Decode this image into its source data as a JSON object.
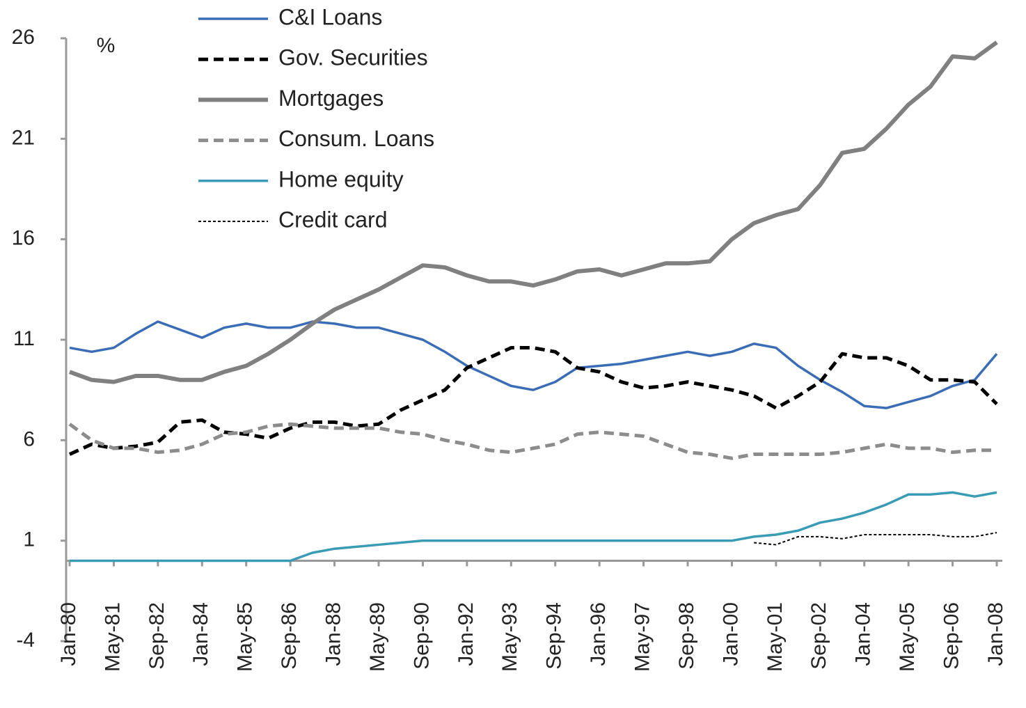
{
  "chart_data": {
    "type": "line",
    "y_label": "%",
    "categories": [
      "Jan-80",
      null,
      "May-81",
      null,
      "Sep-82",
      null,
      "Jan-84",
      null,
      "May-85",
      null,
      "Sep-86",
      null,
      "Jan-88",
      null,
      "May-89",
      null,
      "Sep-90",
      null,
      "Jan-92",
      null,
      "May-93",
      null,
      "Sep-94",
      null,
      "Jan-96",
      null,
      "May-97",
      null,
      "Sep-98",
      null,
      "Jan-00",
      null,
      "May-01",
      null,
      "Sep-02",
      null,
      "Jan-04",
      null,
      "May-05",
      null,
      "Sep-06",
      null,
      "Jan-08"
    ],
    "ylim": [
      -4,
      26
    ],
    "yticks": [
      -4,
      1,
      6,
      11,
      16,
      21,
      26
    ],
    "series": [
      {
        "name": "C&I Loans",
        "color": "#3a6db5",
        "line_style": "solid",
        "values": [
          10.6,
          10.4,
          10.6,
          11.3,
          11.9,
          11.5,
          11.1,
          11.6,
          11.8,
          11.6,
          11.6,
          11.9,
          11.8,
          11.6,
          11.6,
          11.3,
          11.0,
          10.4,
          9.7,
          9.2,
          8.7,
          8.5,
          8.9,
          9.6,
          9.7,
          9.8,
          10.0,
          10.2,
          10.4,
          10.2,
          10.4,
          10.8,
          10.6,
          9.7,
          9.0,
          8.4,
          7.7,
          7.6,
          7.9,
          8.2,
          8.7,
          9.0,
          10.3
        ]
      },
      {
        "name": "Gov. Securities",
        "color": "#000000",
        "line_style": "dashed",
        "values": [
          5.3,
          5.8,
          5.6,
          5.7,
          5.9,
          6.9,
          7.0,
          6.4,
          6.3,
          6.1,
          6.6,
          6.9,
          6.9,
          6.7,
          6.8,
          7.5,
          8.0,
          8.5,
          9.6,
          10.1,
          10.6,
          10.6,
          10.4,
          9.6,
          9.4,
          8.9,
          8.6,
          8.7,
          8.9,
          8.7,
          8.5,
          8.2,
          7.6,
          8.2,
          8.9,
          10.3,
          10.1,
          10.1,
          9.7,
          9.0,
          9.0,
          8.9,
          7.8
        ]
      },
      {
        "name": "Mortgages",
        "color": "#808080",
        "line_style": "solid",
        "values": [
          9.4,
          9.0,
          8.9,
          9.2,
          9.2,
          9.0,
          9.0,
          9.4,
          9.7,
          10.3,
          11.0,
          11.8,
          12.5,
          13.0,
          13.5,
          14.1,
          14.7,
          14.6,
          14.2,
          13.9,
          13.9,
          13.7,
          14.0,
          14.4,
          14.5,
          14.2,
          14.5,
          14.8,
          14.8,
          14.9,
          16.0,
          16.8,
          17.2,
          17.5,
          18.7,
          20.3,
          20.5,
          21.5,
          22.7,
          23.6,
          25.1,
          25.0,
          25.8
        ]
      },
      {
        "name": "Consum. Loans",
        "color": "#8c8c8c",
        "line_style": "dashed",
        "values": [
          6.8,
          6.0,
          5.6,
          5.6,
          5.4,
          5.5,
          5.8,
          6.3,
          6.4,
          6.7,
          6.8,
          6.7,
          6.6,
          6.6,
          6.6,
          6.4,
          6.3,
          6.0,
          5.8,
          5.5,
          5.4,
          5.6,
          5.8,
          6.3,
          6.4,
          6.3,
          6.2,
          5.8,
          5.4,
          5.3,
          5.1,
          5.3,
          5.3,
          5.3,
          5.3,
          5.4,
          5.6,
          5.8,
          5.6,
          5.6,
          5.4,
          5.5,
          5.5
        ]
      },
      {
        "name": "Home equity",
        "color": "#3a9bb5",
        "line_style": "solid",
        "values": [
          0,
          0,
          0,
          0,
          0,
          0,
          0,
          0,
          0,
          0,
          0,
          0.4,
          0.6,
          0.7,
          0.8,
          0.9,
          1.0,
          1.0,
          1.0,
          1.0,
          1.0,
          1.0,
          1.0,
          1.0,
          1.0,
          1.0,
          1.0,
          1.0,
          1.0,
          1.0,
          1.0,
          1.2,
          1.3,
          1.5,
          1.9,
          2.1,
          2.4,
          2.8,
          3.3,
          3.3,
          3.4,
          3.2,
          3.4
        ]
      },
      {
        "name": "Credit card",
        "color": "#000000",
        "line_style": "dotted",
        "values": [
          null,
          null,
          null,
          null,
          null,
          null,
          null,
          null,
          null,
          null,
          null,
          null,
          null,
          null,
          null,
          null,
          null,
          null,
          null,
          null,
          null,
          null,
          null,
          null,
          null,
          null,
          null,
          null,
          null,
          null,
          null,
          0.9,
          0.8,
          1.2,
          1.2,
          1.1,
          1.3,
          1.3,
          1.3,
          1.3,
          1.2,
          1.2,
          1.4
        ]
      }
    ]
  }
}
